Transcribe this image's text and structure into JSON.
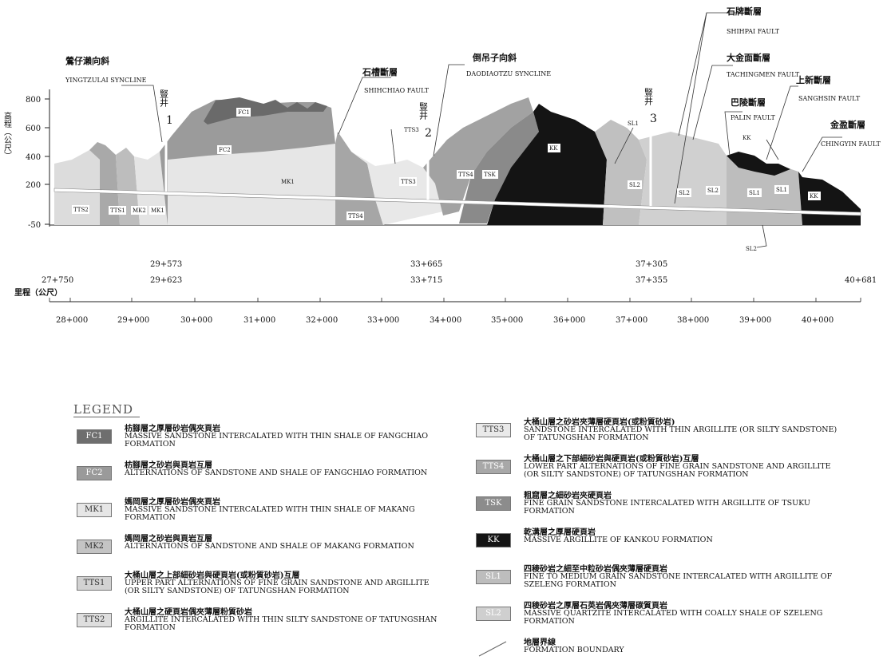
{
  "section": {
    "y_axis_label": "高程（公尺）",
    "y_ticks": [
      "800",
      "600",
      "400",
      "200",
      "-50"
    ],
    "chainage_label": "里程（公尺）",
    "chainage_ticks": [
      "28+000",
      "29+000",
      "30+000",
      "31+000",
      "32+000",
      "33+000",
      "34+000",
      "35+000",
      "36+000",
      "37+000",
      "38+000",
      "39+000",
      "40+000"
    ],
    "chainage_start": "27+750",
    "chainage_end": "40+681",
    "shaft_stations": [
      {
        "upper": "29+573",
        "lower": "29+623"
      },
      {
        "upper": "33+665",
        "lower": "33+715"
      },
      {
        "upper": "37+305",
        "lower": "37+355"
      }
    ],
    "shafts": [
      {
        "zh": "豎井",
        "num": "1"
      },
      {
        "zh": "豎井",
        "num": "2"
      },
      {
        "zh": "豎井",
        "num": "3"
      }
    ],
    "structures": [
      {
        "zh": "鶯仔瀨向斜",
        "en": "YINGTZULAI SYNCLINE"
      },
      {
        "zh": "石槽斷層",
        "en": "SHIHCHIAO FAULT"
      },
      {
        "zh": "倒吊子向斜",
        "en": "DAODIAOTZU SYNCLINE"
      },
      {
        "zh": "石牌斷層",
        "en": "SHIHPAI FAULT"
      },
      {
        "zh": "大金面斷層",
        "en": "TACHINGMEN FAULT"
      },
      {
        "zh": "上新斷層",
        "en": "SANGHSIN FAULT"
      },
      {
        "zh": "巴陵斷層",
        "en": "PALIN FAULT"
      },
      {
        "zh": "金盈斷層",
        "en": "CHINGYIN FAULT"
      }
    ],
    "unit_tags": [
      "FC1",
      "FC2",
      "MK1",
      "TTS2",
      "TTS1",
      "MK2",
      "MK1",
      "TTS4",
      "TTS3",
      "TTS3",
      "TTS4",
      "TSK",
      "KK",
      "SL1",
      "SL2",
      "SL2",
      "SL2",
      "SL1",
      "SL1",
      "KK",
      "KK",
      "SL2"
    ]
  },
  "legend": {
    "title": "LEGEND",
    "items": [
      {
        "code": "FC1",
        "zh": "枋腳層之厚層砂岩偶夾頁岩",
        "en": "MASSIVE SANDSTONE INTERCALATED WITH THIN SHALE OF FANGCHIAO FORMATION",
        "color": "#6e6e6e",
        "text_color": "#ffffff"
      },
      {
        "code": "FC2",
        "zh": "枋腳層之砂岩與頁岩互層",
        "en": "ALTERNATIONS OF SANDSTONE AND SHALE OF FANGCHIAO FORMATION",
        "color": "#9a9a9a",
        "text_color": "#ffffff"
      },
      {
        "code": "MK1",
        "zh": "媽岡層之厚層砂岩偶夾頁岩",
        "en": "MASSIVE SANDSTONE INTERCALATED WITH THIN SHALE OF MAKANG FORMATION",
        "color": "#e6e6e6",
        "text_color": "#333333"
      },
      {
        "code": "MK2",
        "zh": "媽岡層之砂岩與頁岩互層",
        "en": "ALTERNATIONS OF SANDSTONE AND SHALE OF MAKANG FORMATION",
        "color": "#c4c4c4",
        "text_color": "#333333"
      },
      {
        "code": "TTS1",
        "zh": "大桶山層之上部細砂岩與硬頁岩(或粉質砂岩)互層",
        "en": "UPPER PART ALTERNATIONS OF FINE GRAIN SANDSTONE AND ARGILLITE (OR SILTY SANDSTONE) OF TATUNGSHAN FORMATION",
        "color": "#d2d2d2",
        "text_color": "#333333"
      },
      {
        "code": "TTS2",
        "zh": "大桶山層之硬頁岩偶夾薄層粉質砂岩",
        "en": "ARGILLITE INTERCALATED WITH THIN SILTY SANDSTONE OF TATUNGSHAN FORMATION",
        "color": "#dedede",
        "text_color": "#333333"
      },
      {
        "code": "TTS3",
        "zh": "大桶山層之砂岩夾薄層硬頁岩(或粉質砂岩)",
        "en": "SANDSTONE INTERCALATED WITH THIN ARGILLITE (OR SILTY SANDSTONE) OF TATUNGSHAN FORMATION",
        "color": "#e9e9e9",
        "text_color": "#333333"
      },
      {
        "code": "TTS4",
        "zh": "大桶山層之下部細砂岩與硬頁岩(或粉質砂岩)互層",
        "en": "LOWER PART ALTERNATIONS OF FINE GRAIN SANDSTONE AND ARGILLITE (OR SILTY SANDSTONE) OF TATUNGSHAN FORMATION",
        "color": "#a8a8a8",
        "text_color": "#ffffff"
      },
      {
        "code": "TSK",
        "zh": "粗窟層之細砂岩夾硬頁岩",
        "en": "FINE GRAIN SANDSTONE INTERCALATED WITH ARGILLITE OF TSUKU FORMATION",
        "color": "#8c8c8c",
        "text_color": "#ffffff"
      },
      {
        "code": "KK",
        "zh": "乾溝層之厚層硬頁岩",
        "en": "MASSIVE ARGILLITE OF KANKOU FORMATION",
        "color": "#141414",
        "text_color": "#ffffff"
      },
      {
        "code": "SL1",
        "zh": "四稜砂岩之細至中粒砂岩偶夾薄層硬頁岩",
        "en": "FINE TO MEDIUM GRAIN SANDSTONE INTERCALATED WITH ARGILLITE OF SZELENG FORMATION",
        "color": "#bdbdbd",
        "text_color": "#ffffff"
      },
      {
        "code": "SL2",
        "zh": "四稜砂岩之厚層石英岩偶夾薄層碳質頁岩",
        "en": "MASSIVE QUARTZITE INTERCALATED WITH COALLY SHALE OF SZELENG FORMATION",
        "color": "#cfcfcf",
        "text_color": "#ffffff"
      },
      {
        "code": "",
        "zh": "地層界線",
        "en": "FORMATION BOUNDARY",
        "color": "#ffffff",
        "text_color": "#333333"
      }
    ]
  }
}
